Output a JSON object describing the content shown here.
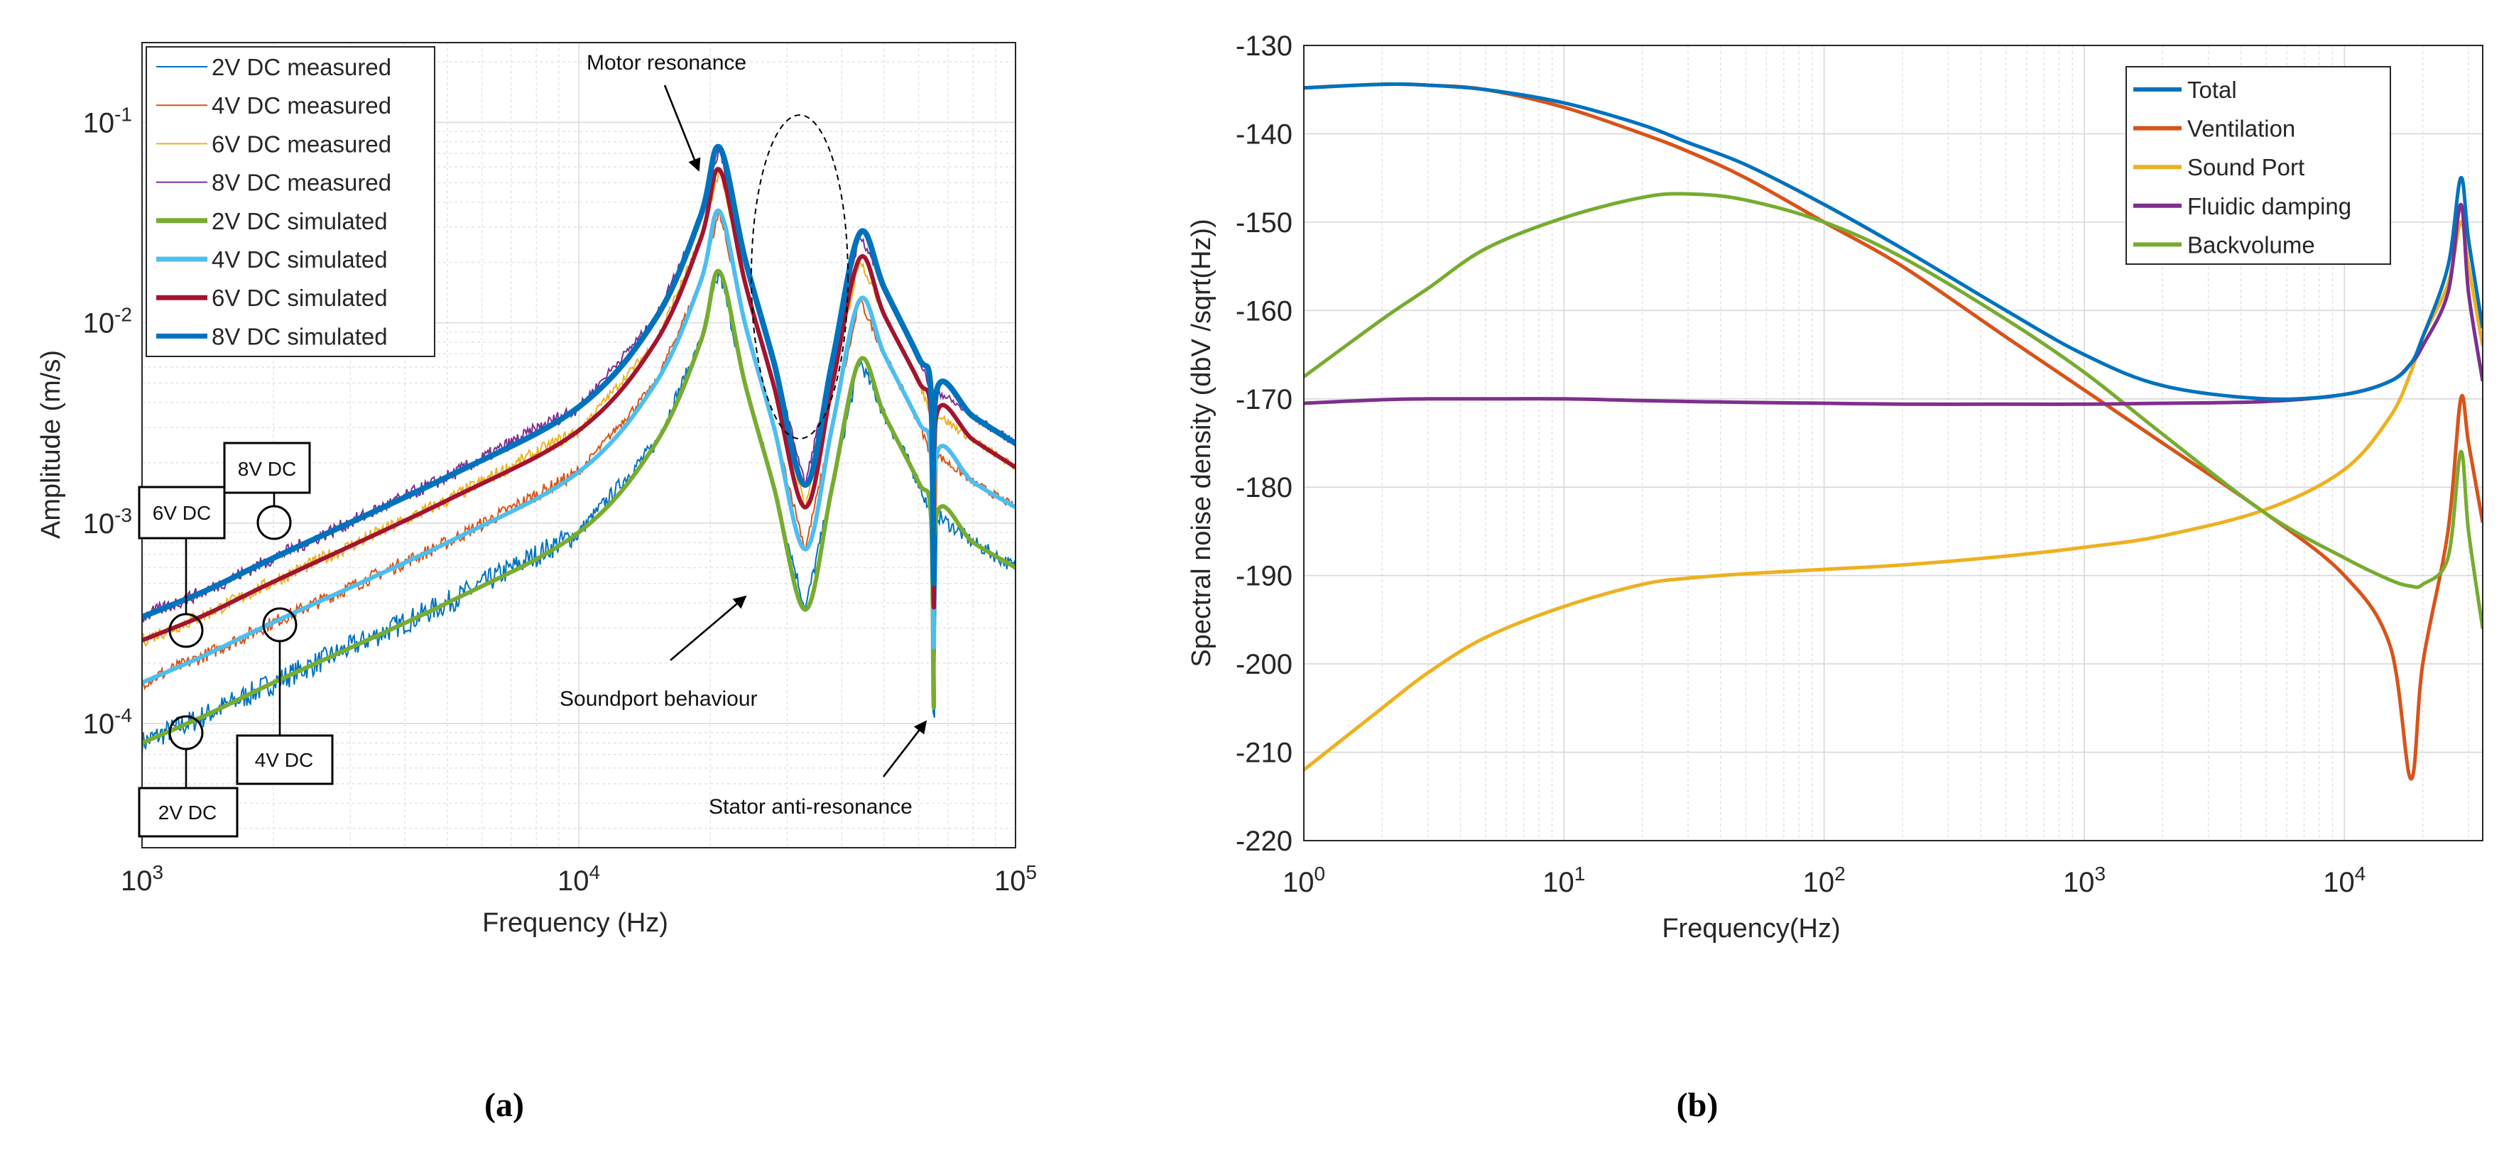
{
  "captions": {
    "a": "(a)",
    "b": "(b)"
  },
  "annotations": {
    "motor": "Motor resonance",
    "soundport": "Soundport behaviour",
    "stator": "Stator anti-resonance",
    "box8": "8V DC",
    "box6": "6V DC",
    "box4": "4V DC",
    "box2": "2V DC"
  },
  "chart_data": [
    {
      "type": "line",
      "title": "",
      "xlabel": "Frequency (Hz)",
      "ylabel": "Amplitude (m/s)",
      "xscale": "log",
      "yscale": "log",
      "xlim": [
        1000,
        100000
      ],
      "ylim": [
        2.4e-05,
        0.25
      ],
      "grid": true,
      "legend_position": "top-left",
      "xticks": [
        {
          "base": "10",
          "exp": "3",
          "value": 1000
        },
        {
          "base": "10",
          "exp": "4",
          "value": 10000
        },
        {
          "base": "10",
          "exp": "5",
          "value": 100000
        }
      ],
      "yticks": [
        {
          "base": "10",
          "exp": "-4",
          "value": 0.0001
        },
        {
          "base": "10",
          "exp": "-3",
          "value": 0.001
        },
        {
          "base": "10",
          "exp": "-2",
          "value": 0.01
        },
        {
          "base": "10",
          "exp": "-1",
          "value": 0.1
        }
      ],
      "x": [
        1000,
        1400,
        2000,
        5000,
        10000,
        15000,
        19000,
        21000,
        24000,
        28000,
        33000,
        38000,
        44000,
        50000,
        60000,
        64000,
        65000,
        66000,
        80000,
        100000
      ],
      "series": [
        {
          "name": "2V DC measured",
          "kind": "measured",
          "color": "#0072BD",
          "values": [
            8e-05,
            0.00011,
            0.00016,
            0.0004,
            0.0009,
            0.0025,
            0.008,
            0.018,
            0.005,
            0.0015,
            0.00037,
            0.0015,
            0.0065,
            0.0035,
            0.0016,
            0.0011,
            5.5e-05,
            0.0011,
            0.0008,
            0.0006
          ]
        },
        {
          "name": "4V DC measured",
          "kind": "measured",
          "color": "#D95319",
          "values": [
            0.00016,
            0.00022,
            0.00032,
            0.0008,
            0.0018,
            0.005,
            0.016,
            0.036,
            0.01,
            0.003,
            0.00074,
            0.003,
            0.013,
            0.007,
            0.0032,
            0.0022,
            0.00024,
            0.0022,
            0.0016,
            0.0012
          ]
        },
        {
          "name": "6V DC measured",
          "kind": "measured",
          "color": "#EDB120",
          "values": [
            0.00026,
            0.00035,
            0.00051,
            0.0013,
            0.0029,
            0.008,
            0.026,
            0.058,
            0.016,
            0.0048,
            0.0012,
            0.0048,
            0.021,
            0.011,
            0.0051,
            0.0035,
            0.00038,
            0.0035,
            0.0026,
            0.0019
          ]
        },
        {
          "name": "8V DC measured",
          "kind": "measured",
          "color": "#7E2F8E",
          "values": [
            0.00034,
            0.00046,
            0.00067,
            0.0017,
            0.0038,
            0.0105,
            0.034,
            0.075,
            0.021,
            0.0063,
            0.00155,
            0.0063,
            0.028,
            0.015,
            0.0067,
            0.0046,
            0.0005,
            0.0046,
            0.0034,
            0.0025
          ]
        },
        {
          "name": "2V DC simulated",
          "kind": "simulated",
          "color": "#77AC30",
          "values": [
            8e-05,
            0.00011,
            0.00016,
            0.0004,
            0.0009,
            0.0025,
            0.008,
            0.018,
            0.005,
            0.0015,
            0.00037,
            0.0015,
            0.0065,
            0.0035,
            0.0016,
            0.0011,
            0.00012,
            0.0011,
            0.0008,
            0.0006
          ]
        },
        {
          "name": "4V DC simulated",
          "kind": "simulated",
          "color": "#4DBEEE",
          "values": [
            0.00016,
            0.00022,
            0.00032,
            0.0008,
            0.0018,
            0.005,
            0.016,
            0.036,
            0.01,
            0.003,
            0.00074,
            0.003,
            0.013,
            0.007,
            0.0032,
            0.0022,
            0.00024,
            0.0022,
            0.0016,
            0.0012
          ]
        },
        {
          "name": "6V DC simulated",
          "kind": "simulated",
          "color": "#A2142F",
          "values": [
            0.00026,
            0.00035,
            0.00051,
            0.0013,
            0.0029,
            0.008,
            0.026,
            0.058,
            0.016,
            0.0048,
            0.0012,
            0.0048,
            0.021,
            0.011,
            0.0051,
            0.0035,
            0.00038,
            0.0035,
            0.0026,
            0.0019
          ]
        },
        {
          "name": "8V DC simulated",
          "kind": "simulated",
          "color": "#0072BD",
          "values": [
            0.00034,
            0.00046,
            0.00067,
            0.0017,
            0.0038,
            0.0105,
            0.034,
            0.075,
            0.021,
            0.0063,
            0.00155,
            0.0063,
            0.028,
            0.015,
            0.0067,
            0.0046,
            0.0005,
            0.0046,
            0.0034,
            0.0025
          ]
        }
      ]
    },
    {
      "type": "line",
      "title": "",
      "xlabel": "Frequency(Hz)",
      "ylabel": "Spectral noise density (dbV /sqrt(Hz))",
      "xscale": "log",
      "yscale": "linear",
      "xlim": [
        1,
        34000
      ],
      "ylim": [
        -220,
        -130
      ],
      "grid": true,
      "legend_position": "top-right",
      "xticks": [
        {
          "base": "10",
          "exp": "0",
          "value": 1
        },
        {
          "base": "10",
          "exp": "1",
          "value": 10
        },
        {
          "base": "10",
          "exp": "2",
          "value": 100
        },
        {
          "base": "10",
          "exp": "3",
          "value": 1000
        },
        {
          "base": "10",
          "exp": "4",
          "value": 10000
        }
      ],
      "yticks": [
        "-130",
        "-140",
        "-150",
        "-160",
        "-170",
        "-180",
        "-190",
        "-200",
        "-210",
        "-220"
      ],
      "x": [
        1,
        2,
        3,
        5,
        10,
        20,
        30,
        50,
        100,
        200,
        500,
        1000,
        2000,
        5000,
        10000,
        15000,
        18000,
        20000,
        25000,
        28000,
        30000,
        34000
      ],
      "series": [
        {
          "name": "Ventilation",
          "color": "#D95319",
          "values": [
            -134.8,
            -134.4,
            -134.5,
            -135,
            -137,
            -140,
            -142,
            -145,
            -150,
            -155,
            -163,
            -169,
            -175,
            -183,
            -190,
            -198,
            -213,
            -200,
            -185,
            -170,
            -175,
            -184
          ]
        },
        {
          "name": "Sound Port",
          "color": "#EDB120",
          "values": [
            -212,
            -205,
            -201,
            -197,
            -193.5,
            -191,
            -190.3,
            -189.8,
            -189.3,
            -188.8,
            -187.8,
            -186.8,
            -185.5,
            -182.5,
            -178,
            -172,
            -167,
            -163,
            -157,
            -150,
            -155,
            -164
          ]
        },
        {
          "name": "Backvolume",
          "color": "#77AC30",
          "values": [
            -167.5,
            -161,
            -157.5,
            -153,
            -149.5,
            -147.2,
            -146.8,
            -147.5,
            -150,
            -154,
            -161,
            -167,
            -174,
            -183,
            -188,
            -190.5,
            -191.2,
            -191,
            -188,
            -176,
            -185,
            -196
          ]
        },
        {
          "name": "Fluidic damping",
          "color": "#7E2F8E",
          "values": [
            -170.5,
            -170.1,
            -170,
            -170,
            -170,
            -170.2,
            -170.3,
            -170.4,
            -170.5,
            -170.6,
            -170.6,
            -170.6,
            -170.5,
            -170.3,
            -169.5,
            -168,
            -166,
            -164,
            -158,
            -148,
            -158,
            -168
          ]
        },
        {
          "name": "Total",
          "color": "#0072BD",
          "values": [
            -134.8,
            -134.4,
            -134.5,
            -135,
            -136.5,
            -139,
            -141,
            -143.5,
            -148,
            -153,
            -160,
            -165,
            -168.5,
            -170,
            -169.5,
            -168,
            -166,
            -163,
            -155,
            -145,
            -152,
            -162
          ]
        }
      ],
      "legend_order": [
        "Total",
        "Ventilation",
        "Sound Port",
        "Fluidic damping",
        "Backvolume"
      ]
    }
  ]
}
